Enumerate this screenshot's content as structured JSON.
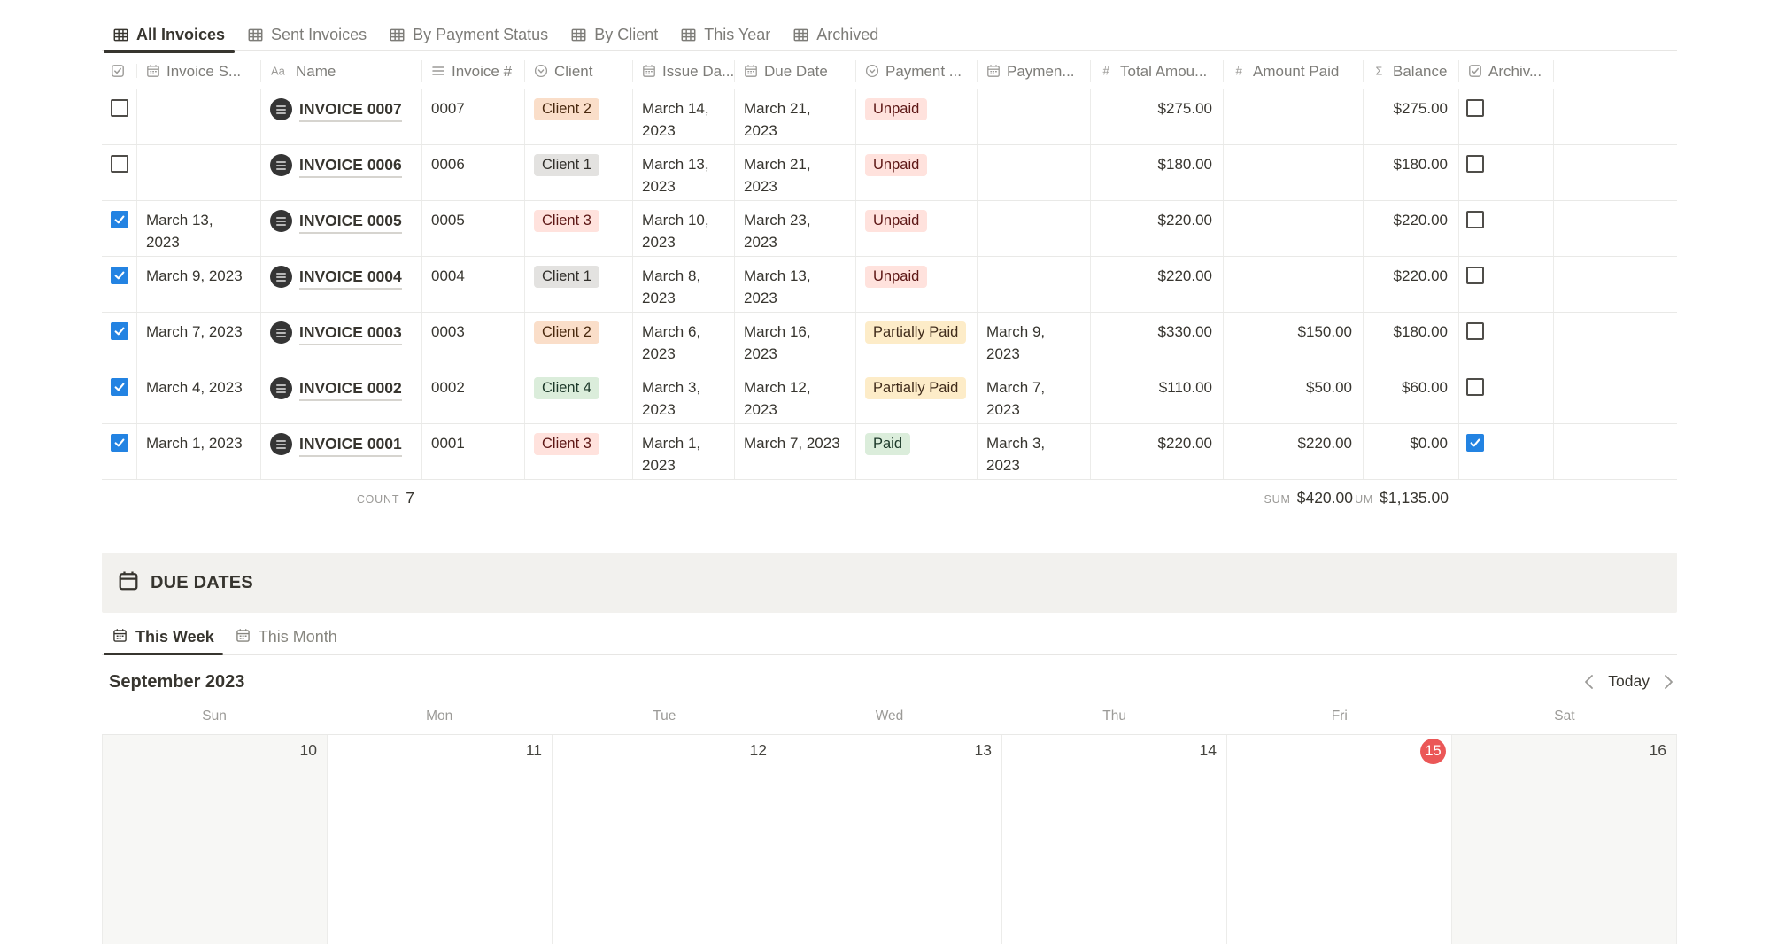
{
  "view_tabs": [
    {
      "label": "All Invoices",
      "active": true
    },
    {
      "label": "Sent Invoices",
      "active": false
    },
    {
      "label": "By Payment Status",
      "active": false
    },
    {
      "label": "By Client",
      "active": false
    },
    {
      "label": "This Year",
      "active": false
    },
    {
      "label": "Archived",
      "active": false
    }
  ],
  "table": {
    "columns": [
      {
        "key": "check",
        "label": "",
        "icon": "checkbox-icon"
      },
      {
        "key": "invoice_sent",
        "label": "Invoice S...",
        "icon": "date-icon"
      },
      {
        "key": "name",
        "label": "Name",
        "icon": "text-icon"
      },
      {
        "key": "invoice_num",
        "label": "Invoice #",
        "icon": "lines-icon"
      },
      {
        "key": "client",
        "label": "Client",
        "icon": "select-icon"
      },
      {
        "key": "issue_date",
        "label": "Issue Da...",
        "icon": "date-icon"
      },
      {
        "key": "due_date",
        "label": "Due Date",
        "icon": "date-icon"
      },
      {
        "key": "payment_status",
        "label": "Payment ...",
        "icon": "select-icon"
      },
      {
        "key": "payment_date",
        "label": "Paymen...",
        "icon": "date-icon"
      },
      {
        "key": "total_amount",
        "label": "Total Amou...",
        "icon": "number-icon"
      },
      {
        "key": "amount_paid",
        "label": "Amount Paid",
        "icon": "number-icon"
      },
      {
        "key": "balance",
        "label": "Balance",
        "icon": "formula-icon"
      },
      {
        "key": "archived",
        "label": "Archiv...",
        "icon": "checkbox-icon"
      },
      {
        "key": "extra",
        "label": "",
        "icon": ""
      }
    ],
    "rows": [
      {
        "checked": false,
        "invoice_sent": "",
        "name": "INVOICE 0007",
        "invoice_num": "0007",
        "client": {
          "label": "Client 2",
          "color": "orange"
        },
        "issue_date": "March 14, 2023",
        "due_date": "March 21, 2023",
        "payment_status": {
          "label": "Unpaid",
          "color": "red"
        },
        "payment_date": "",
        "total_amount": "$275.00",
        "amount_paid": "",
        "balance": "$275.00",
        "archived": false
      },
      {
        "checked": false,
        "invoice_sent": "",
        "name": "INVOICE 0006",
        "invoice_num": "0006",
        "client": {
          "label": "Client 1",
          "color": "gray"
        },
        "issue_date": "March 13, 2023",
        "due_date": "March 21, 2023",
        "payment_status": {
          "label": "Unpaid",
          "color": "red"
        },
        "payment_date": "",
        "total_amount": "$180.00",
        "amount_paid": "",
        "balance": "$180.00",
        "archived": false
      },
      {
        "checked": true,
        "invoice_sent": "March 13, 2023",
        "name": "INVOICE 0005",
        "invoice_num": "0005",
        "client": {
          "label": "Client 3",
          "color": "red"
        },
        "issue_date": "March 10, 2023",
        "due_date": "March 23, 2023",
        "payment_status": {
          "label": "Unpaid",
          "color": "red"
        },
        "payment_date": "",
        "total_amount": "$220.00",
        "amount_paid": "",
        "balance": "$220.00",
        "archived": false
      },
      {
        "checked": true,
        "invoice_sent": "March 9, 2023",
        "name": "INVOICE 0004",
        "invoice_num": "0004",
        "client": {
          "label": "Client 1",
          "color": "gray"
        },
        "issue_date": "March 8, 2023",
        "due_date": "March 13, 2023",
        "payment_status": {
          "label": "Unpaid",
          "color": "red"
        },
        "payment_date": "",
        "total_amount": "$220.00",
        "amount_paid": "",
        "balance": "$220.00",
        "archived": false
      },
      {
        "checked": true,
        "invoice_sent": "March 7, 2023",
        "name": "INVOICE 0003",
        "invoice_num": "0003",
        "client": {
          "label": "Client 2",
          "color": "orange"
        },
        "issue_date": "March 6, 2023",
        "due_date": "March 16, 2023",
        "payment_status": {
          "label": "Partially Paid",
          "color": "yellow"
        },
        "payment_date": "March 9, 2023",
        "total_amount": "$330.00",
        "amount_paid": "$150.00",
        "balance": "$180.00",
        "archived": false
      },
      {
        "checked": true,
        "invoice_sent": "March 4, 2023",
        "name": "INVOICE 0002",
        "invoice_num": "0002",
        "client": {
          "label": "Client 4",
          "color": "green"
        },
        "issue_date": "March 3, 2023",
        "due_date": "March 12, 2023",
        "payment_status": {
          "label": "Partially Paid",
          "color": "yellow"
        },
        "payment_date": "March 7, 2023",
        "total_amount": "$110.00",
        "amount_paid": "$50.00",
        "balance": "$60.00",
        "archived": false
      },
      {
        "checked": true,
        "invoice_sent": "March 1, 2023",
        "name": "INVOICE 0001",
        "invoice_num": "0001",
        "client": {
          "label": "Client 3",
          "color": "red"
        },
        "issue_date": "March 1, 2023",
        "due_date": "March 7, 2023",
        "payment_status": {
          "label": "Paid",
          "color": "green"
        },
        "payment_date": "March 3, 2023",
        "total_amount": "$220.00",
        "amount_paid": "$220.00",
        "balance": "$0.00",
        "archived": true
      }
    ],
    "footer": {
      "count_label": "COUNT",
      "count_value": "7",
      "aggregates": [
        {
          "label": "SUM",
          "value": "$420.00",
          "align_col": "amount_paid"
        },
        {
          "label": "UM",
          "value": "$1,135.00",
          "align_col": "balance"
        }
      ]
    }
  },
  "due_dates": {
    "title": "DUE DATES",
    "tabs": [
      {
        "label": "This Week",
        "active": true
      },
      {
        "label": "This Month",
        "active": false
      }
    ]
  },
  "calendar": {
    "month_title": "September 2023",
    "today_label": "Today",
    "weekdays": [
      "Sun",
      "Mon",
      "Tue",
      "Wed",
      "Thu",
      "Fri",
      "Sat"
    ],
    "days": [
      {
        "num": "10",
        "weekend": true,
        "today": false
      },
      {
        "num": "11",
        "weekend": false,
        "today": false
      },
      {
        "num": "12",
        "weekend": false,
        "today": false
      },
      {
        "num": "13",
        "weekend": false,
        "today": false
      },
      {
        "num": "14",
        "weekend": false,
        "today": false
      },
      {
        "num": "15",
        "weekend": false,
        "today": true
      },
      {
        "num": "16",
        "weekend": true,
        "today": false
      }
    ]
  },
  "colors": {
    "accent_blue": "#2383e2",
    "today_red": "#eb5757",
    "tag_gray_bg": "#e3e2e0",
    "tag_orange_bg": "#fadec9",
    "tag_red_bg": "#ffe2dd",
    "tag_green_bg": "#dbeddb",
    "tag_yellow_bg": "#fdecc8",
    "border": "#e9e9e7",
    "banner_bg": "#f2f1ee"
  }
}
